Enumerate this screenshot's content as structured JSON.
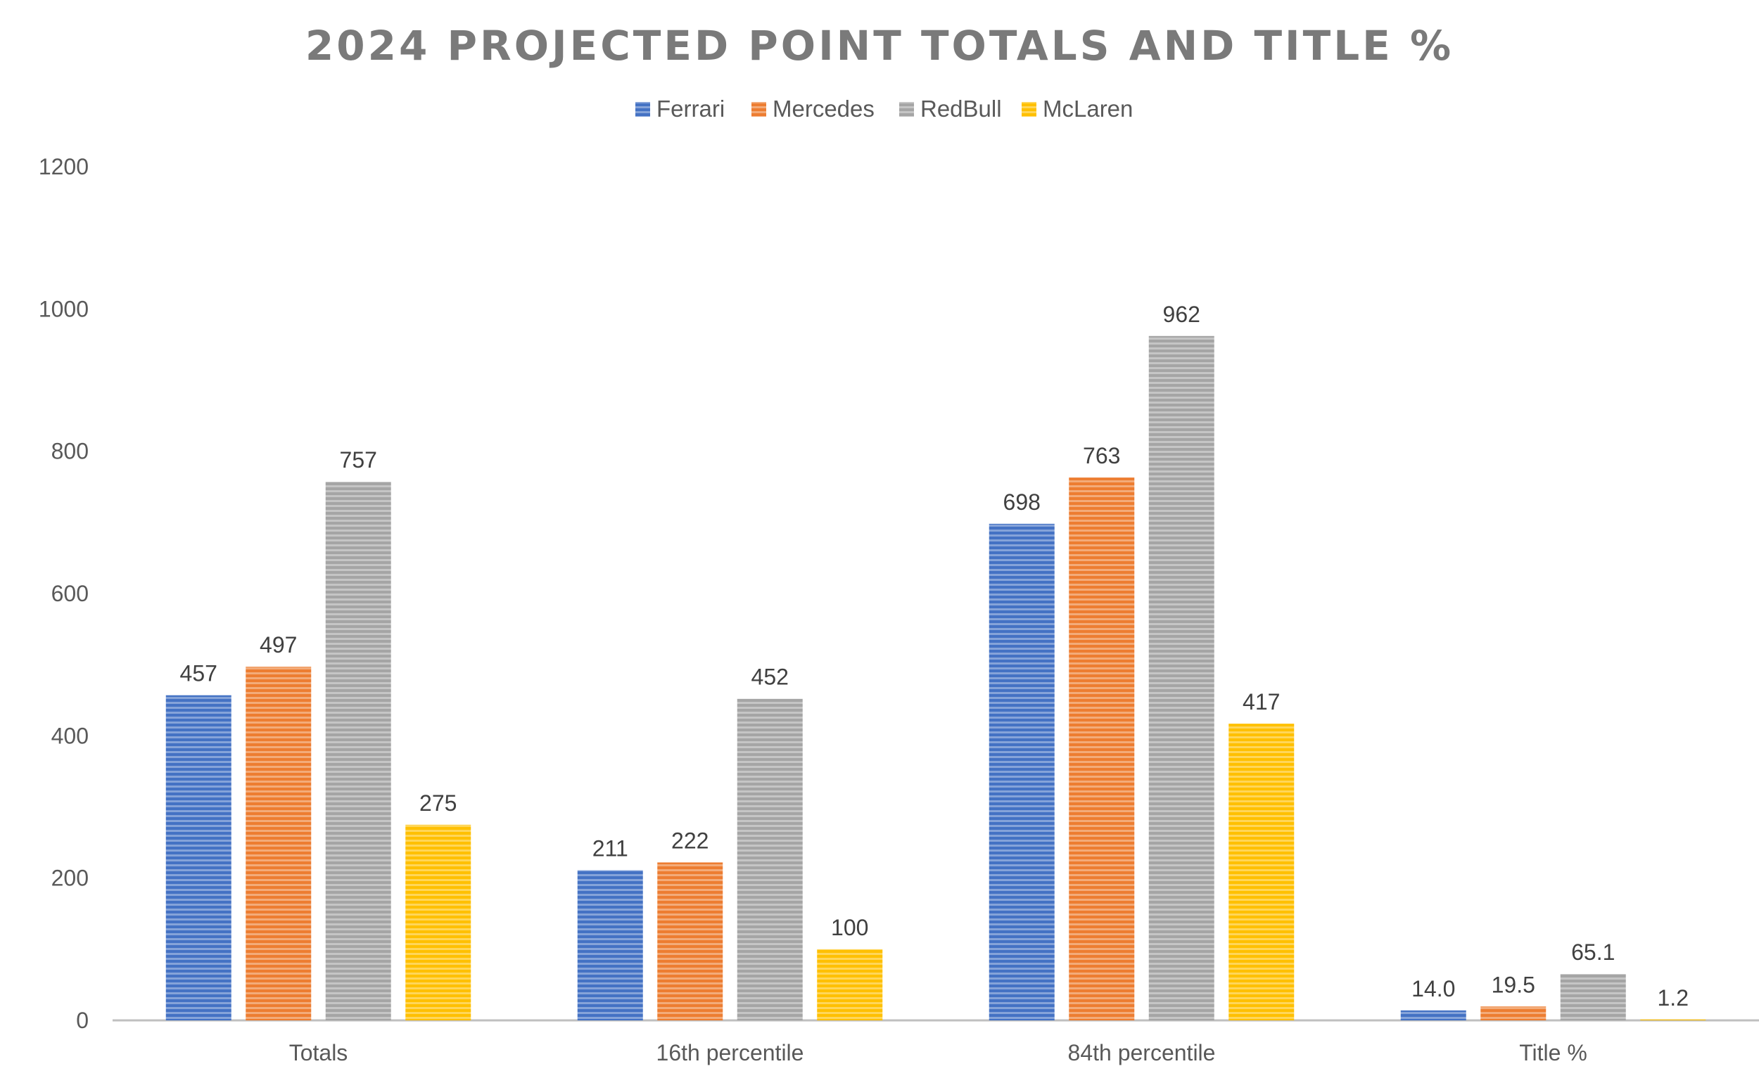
{
  "chart_data": {
    "type": "bar",
    "title": "2024 PROJECTED POINT TOTALS AND TITLE %",
    "xlabel": "",
    "ylabel": "",
    "categories": [
      "Totals",
      "16th percentile",
      "84th percentile",
      "Title %"
    ],
    "series": [
      {
        "name": "Ferrari",
        "color": "#4472c4",
        "values": [
          457,
          211,
          698,
          14.0
        ],
        "labels": [
          "457",
          "211",
          "698",
          "14.0"
        ]
      },
      {
        "name": "Mercedes",
        "color": "#ed7d31",
        "values": [
          497,
          222,
          763,
          19.5
        ],
        "labels": [
          "497",
          "222",
          "763",
          "19.5"
        ]
      },
      {
        "name": "RedBull",
        "color": "#a5a5a5",
        "values": [
          757,
          452,
          962,
          65.1
        ],
        "labels": [
          "757",
          "452",
          "962",
          "65.1"
        ]
      },
      {
        "name": "McLaren",
        "color": "#ffc000",
        "values": [
          275,
          100,
          417,
          1.2
        ],
        "labels": [
          "275",
          "100",
          "417",
          "1.2"
        ]
      }
    ],
    "ylim": [
      0,
      1200
    ],
    "yticks": [
      0,
      200,
      400,
      600,
      800,
      1000,
      1200
    ],
    "grid": false,
    "legend_position": "top",
    "bar_pattern": "horizontal-stripes"
  }
}
